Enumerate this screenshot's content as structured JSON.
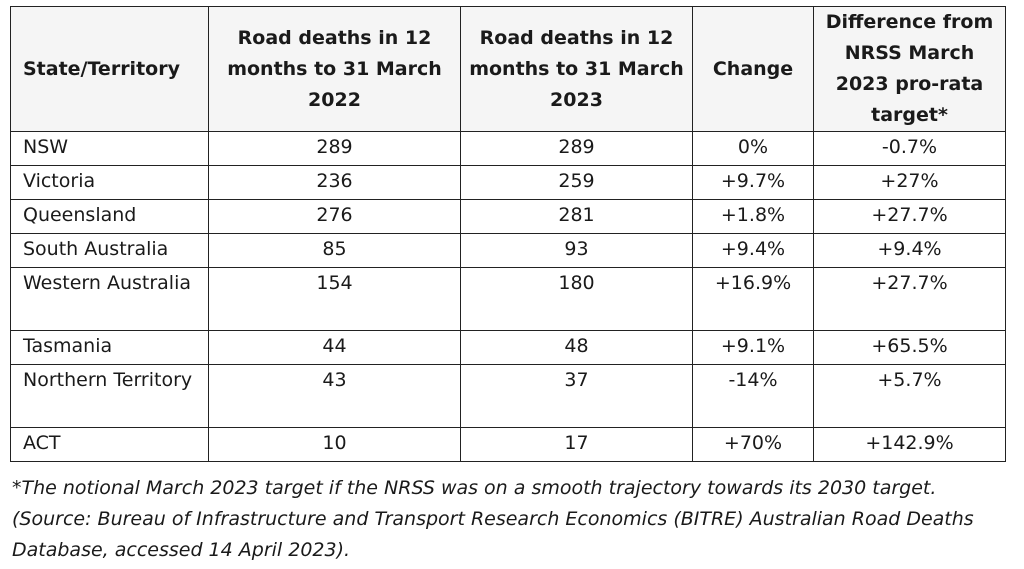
{
  "table": {
    "headers": [
      "State/Territory",
      "Road deaths in 12 months to 31 March 2022",
      "Road deaths in 12 months to 31 March 2023",
      "Change",
      "Difference from NRSS March 2023 pro-rata target*"
    ],
    "rows": [
      {
        "state": "NSW",
        "deaths_2022": "289",
        "deaths_2023": "289",
        "change": "0%",
        "difference": "-0.7%"
      },
      {
        "state": "Victoria",
        "deaths_2022": "236",
        "deaths_2023": "259",
        "change": "+9.7%",
        "difference": "+27%"
      },
      {
        "state": "Queensland",
        "deaths_2022": "276",
        "deaths_2023": "281",
        "change": "+1.8%",
        "difference": "+27.7%"
      },
      {
        "state": "South Australia",
        "deaths_2022": "85",
        "deaths_2023": "93",
        "change": "+9.4%",
        "difference": "+9.4%"
      },
      {
        "state": "Western Australia",
        "deaths_2022": "154",
        "deaths_2023": "180",
        "change": "+16.9%",
        "difference": "+27.7%"
      },
      {
        "state": "Tasmania",
        "deaths_2022": "44",
        "deaths_2023": "48",
        "change": "+9.1%",
        "difference": "+65.5%"
      },
      {
        "state": "Northern Territory",
        "deaths_2022": "43",
        "deaths_2023": "37",
        "change": "-14%",
        "difference": "+5.7%"
      },
      {
        "state": "ACT",
        "deaths_2022": "10",
        "deaths_2023": "17",
        "change": "+70%",
        "difference": "+142.9%"
      }
    ]
  },
  "footnote": {
    "line1": "*The notional March 2023 target if the NRSS was on a smooth trajectory towards its 2030 target.",
    "line2": "(Source: Bureau of Infrastructure and Transport Research Economics (BITRE) Australian Road Deaths Database, accessed 14 April 2023)."
  }
}
